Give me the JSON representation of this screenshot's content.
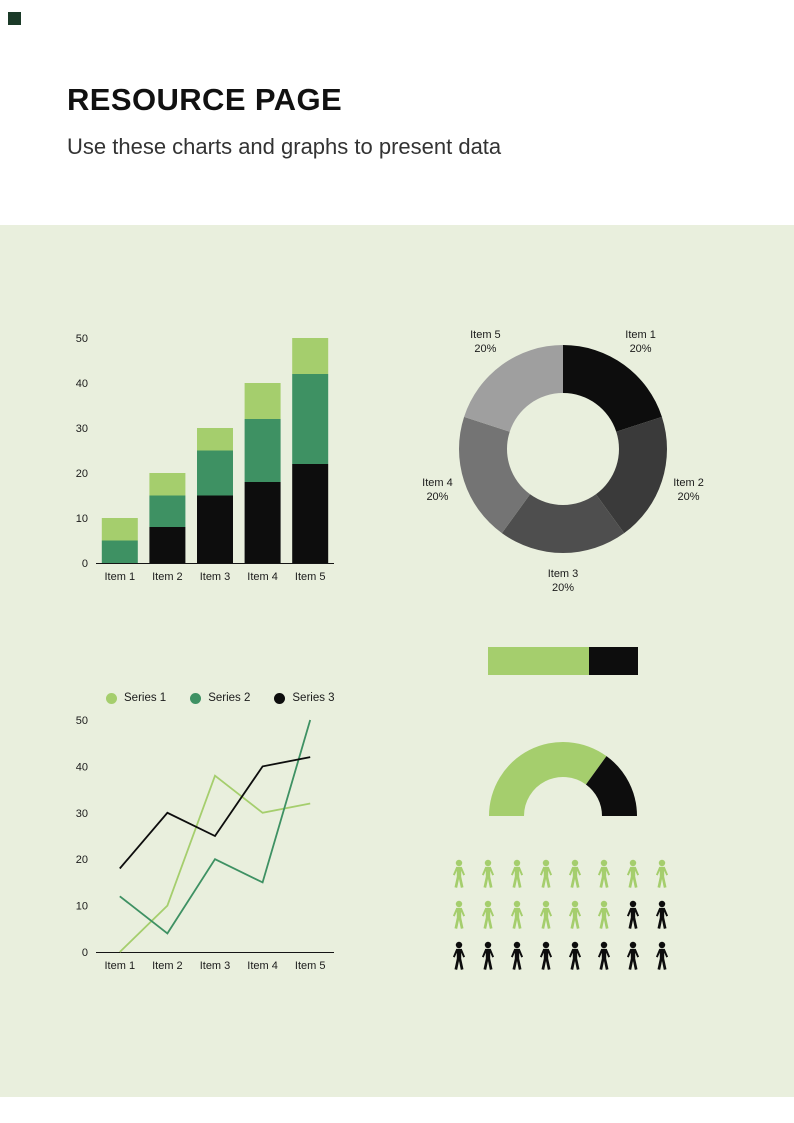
{
  "header": {
    "title": "RESOURCE PAGE",
    "subtitle": "Use these charts and graphs to present data"
  },
  "colors": {
    "panel_bg": "#e9efdd",
    "light_green": "#a5ce6d",
    "dark_green": "#3e9163",
    "black": "#0d0d0d",
    "corner_mark": "#1b3a28"
  },
  "chart_data": [
    {
      "id": "stacked-bar",
      "type": "bar",
      "stacked": true,
      "categories": [
        "Item 1",
        "Item 2",
        "Item 3",
        "Item 4",
        "Item 5"
      ],
      "series": [
        {
          "name": "segment-bottom",
          "color": "#0d0d0d",
          "values": [
            0,
            8,
            15,
            18,
            22
          ]
        },
        {
          "name": "segment-middle",
          "color": "#3e9163",
          "values": [
            5,
            7,
            10,
            14,
            20
          ]
        },
        {
          "name": "segment-top",
          "color": "#a5ce6d",
          "values": [
            5,
            5,
            5,
            8,
            8
          ]
        }
      ],
      "ylim": [
        0,
        50
      ],
      "yticks": [
        0,
        10,
        20,
        30,
        40,
        50
      ],
      "grid": false
    },
    {
      "id": "donut",
      "type": "pie",
      "donut": true,
      "labels": [
        "Item 1",
        "Item 2",
        "Item 3",
        "Item 4",
        "Item 5"
      ],
      "values": [
        20,
        20,
        20,
        20,
        20
      ],
      "value_labels": [
        "20%",
        "20%",
        "20%",
        "20%",
        "20%"
      ],
      "colors": [
        "#0d0d0d",
        "#3a3a3a",
        "#4e4e4e",
        "#747474",
        "#9f9f9f"
      ]
    },
    {
      "id": "line",
      "type": "line",
      "categories": [
        "Item 1",
        "Item 2",
        "Item 3",
        "Item 4",
        "Item 5"
      ],
      "series": [
        {
          "name": "Series 1",
          "color": "#a5ce6d",
          "values": [
            0,
            10,
            38,
            30,
            32
          ]
        },
        {
          "name": "Series 2",
          "color": "#3e9163",
          "values": [
            12,
            4,
            20,
            15,
            50
          ]
        },
        {
          "name": "Series 3",
          "color": "#0d0d0d",
          "values": [
            18,
            30,
            25,
            40,
            42
          ]
        }
      ],
      "ylim": [
        0,
        50
      ],
      "yticks": [
        0,
        10,
        20,
        30,
        40,
        50
      ],
      "legend_position": "top",
      "grid": false
    },
    {
      "id": "progress",
      "type": "bar",
      "orientation": "horizontal",
      "segments": [
        {
          "name": "green",
          "color": "#a5ce6d",
          "value": 67
        },
        {
          "name": "black",
          "color": "#0d0d0d",
          "value": 33
        }
      ]
    },
    {
      "id": "gauge",
      "type": "pie",
      "half": true,
      "segments": [
        {
          "name": "green",
          "color": "#a5ce6d",
          "value": 70
        },
        {
          "name": "black",
          "color": "#0d0d0d",
          "value": 30
        }
      ]
    },
    {
      "id": "pictograph",
      "type": "pictograph",
      "columns": 8,
      "rows": [
        {
          "green": 8,
          "black": 0
        },
        {
          "green": 6,
          "black": 2
        },
        {
          "green": 0,
          "black": 8
        }
      ],
      "totals": {
        "green": 14,
        "black": 10
      },
      "colors": {
        "green": "#a5ce6d",
        "black": "#0d0d0d"
      }
    }
  ]
}
